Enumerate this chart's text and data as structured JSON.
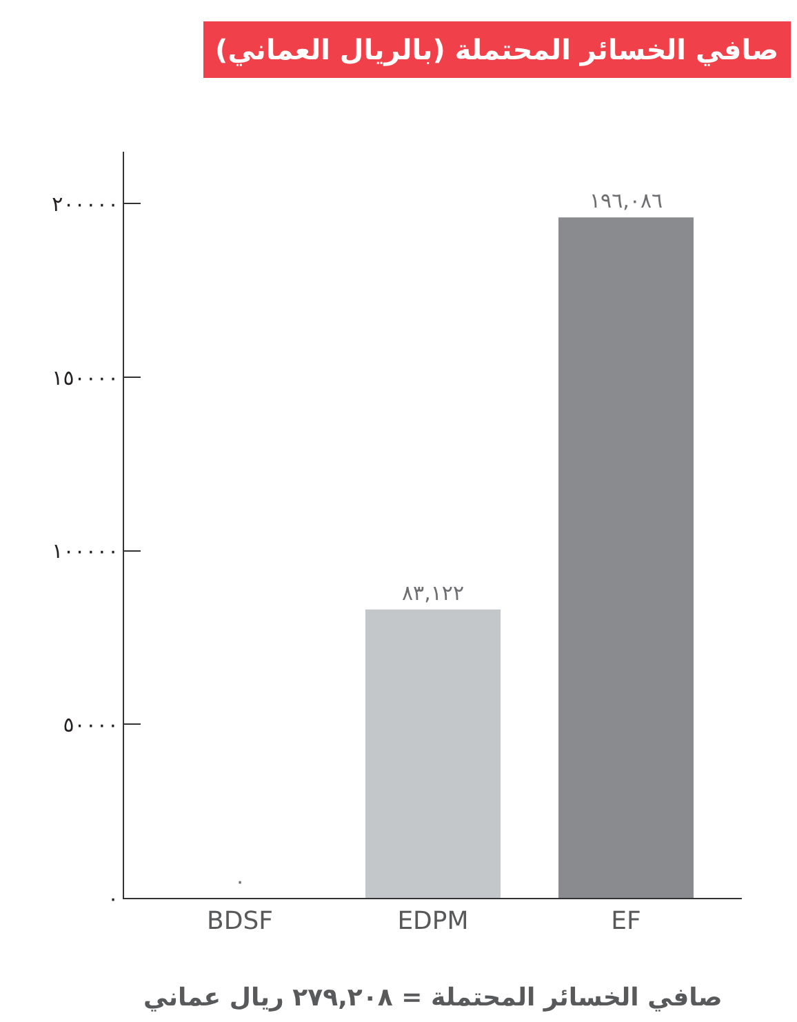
{
  "chart_data": {
    "type": "bar",
    "title": "صافي الخسائر المحتملة (بالريال العماني)",
    "categories": [
      "BDSF",
      "EDPM",
      "EF"
    ],
    "values": [
      0,
      83122,
      196086
    ],
    "colors": [
      "#c1272d",
      "#c4c7ca",
      "#8a8b8f"
    ],
    "value_labels": [
      "٠",
      "٨٣,١٢٢",
      "١٩٦,٠٨٦"
    ],
    "ylim": [
      0,
      215000
    ],
    "yticks": [
      {
        "value": 0,
        "label": "٠"
      },
      {
        "value": 50000,
        "label": "٥٠٠٠٠"
      },
      {
        "value": 100000,
        "label": "١٠٠٠٠٠"
      },
      {
        "value": 150000,
        "label": "١٥٠٠٠٠"
      },
      {
        "value": 200000,
        "label": "٢٠٠٠٠٠"
      }
    ],
    "annotations": [
      "صافي الخسائر المحتملة = ٢٧٩,٢٠٨ ريال عماني"
    ]
  }
}
